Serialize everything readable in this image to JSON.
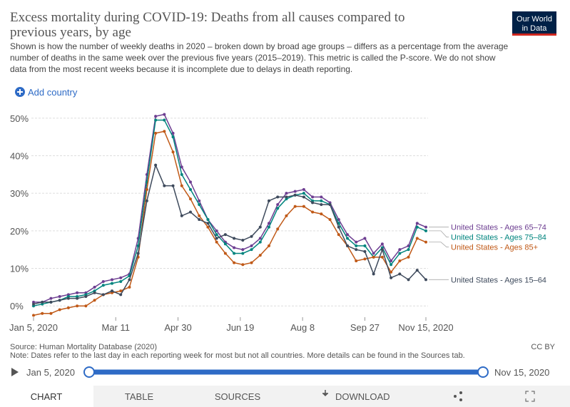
{
  "chart_data": {
    "type": "line",
    "title": [
      "Excess mortality during COVID-19: Deaths from all causes compared to",
      "previous years, by age"
    ],
    "subtitle": [
      "Shown is how the number of weekly deaths in 2020 – broken down by broad age groups – differs as a percentage from the average",
      "number of deaths in the same week over the previous five years (2015–2019). This metric is called the P-score. We do not show",
      "data from the most recent weeks because it is incomplete due to delays in death reporting."
    ],
    "x": [
      "2020-01-05",
      "2020-01-12",
      "2020-01-19",
      "2020-01-26",
      "2020-02-02",
      "2020-02-09",
      "2020-02-16",
      "2020-02-23",
      "2020-03-01",
      "2020-03-08",
      "2020-03-15",
      "2020-03-22",
      "2020-03-29",
      "2020-04-05",
      "2020-04-12",
      "2020-04-19",
      "2020-04-26",
      "2020-05-03",
      "2020-05-10",
      "2020-05-17",
      "2020-05-24",
      "2020-05-31",
      "2020-06-07",
      "2020-06-14",
      "2020-06-21",
      "2020-06-28",
      "2020-07-05",
      "2020-07-12",
      "2020-07-19",
      "2020-07-26",
      "2020-08-02",
      "2020-08-09",
      "2020-08-16",
      "2020-08-23",
      "2020-08-30",
      "2020-09-06",
      "2020-09-13",
      "2020-09-20",
      "2020-09-27",
      "2020-10-04",
      "2020-10-11",
      "2020-10-18",
      "2020-10-25",
      "2020-11-01",
      "2020-11-08",
      "2020-11-15"
    ],
    "xlim": [
      "2020-01-05",
      "2020-11-15"
    ],
    "xticks": [
      {
        "value": "2020-01-05",
        "label": "Jan 5, 2020"
      },
      {
        "value": "2020-03-11",
        "label": "Mar 11"
      },
      {
        "value": "2020-04-30",
        "label": "Apr 30"
      },
      {
        "value": "2020-06-19",
        "label": "Jun 19"
      },
      {
        "value": "2020-08-08",
        "label": "Aug 8"
      },
      {
        "value": "2020-09-27",
        "label": "Sep 27"
      },
      {
        "value": "2020-11-15",
        "label": "Nov 15, 2020"
      }
    ],
    "ylim": [
      -3,
      53
    ],
    "yticks": [
      {
        "value": 0,
        "label": "0%"
      },
      {
        "value": 10,
        "label": "10%"
      },
      {
        "value": 20,
        "label": "20%"
      },
      {
        "value": 30,
        "label": "30%"
      },
      {
        "value": 40,
        "label": "40%"
      },
      {
        "value": 50,
        "label": "50%"
      }
    ],
    "grid": true,
    "series": [
      {
        "name": "United States - Ages 65–74",
        "color": "#6d3e91",
        "values": [
          1,
          1,
          2,
          2.5,
          3,
          3.5,
          3.5,
          5,
          6.5,
          7,
          7.5,
          8.5,
          18,
          35,
          50.5,
          51,
          46,
          37,
          33,
          28,
          23,
          20,
          17,
          15.5,
          15,
          16,
          18,
          22,
          27,
          30,
          30.5,
          31,
          29,
          29,
          27.5,
          23,
          19,
          17,
          18,
          14,
          16.5,
          12,
          15,
          16,
          22,
          21
        ]
      },
      {
        "name": "United States - Ages 75–84",
        "color": "#00847e",
        "values": [
          0,
          0.5,
          1,
          1.5,
          2.5,
          2.5,
          3,
          4,
          5.5,
          6,
          6.5,
          8,
          16,
          33,
          49.5,
          49.5,
          45,
          35,
          31,
          27,
          23,
          19,
          16.5,
          14,
          14,
          15,
          17,
          21,
          26,
          28.5,
          29.5,
          30,
          28,
          28,
          27,
          22,
          18,
          16,
          16,
          13,
          15.5,
          11,
          14,
          15,
          21,
          20
        ]
      },
      {
        "name": "United States - Ages 85+",
        "color": "#c05917",
        "values": [
          -2.5,
          -2,
          -2,
          -1,
          -0.5,
          0,
          0,
          1.5,
          3,
          3.5,
          4,
          5,
          13,
          31,
          46,
          46.5,
          41,
          32,
          28.5,
          24,
          21,
          17,
          14,
          11.5,
          11,
          11.5,
          13.5,
          16,
          20.5,
          24,
          26.5,
          26.5,
          25,
          24.5,
          23,
          19,
          16,
          12,
          12.5,
          13,
          13,
          9,
          12,
          13,
          18,
          17
        ]
      },
      {
        "name": "United States - Ages 15–64",
        "color": "#3e4a5c",
        "values": [
          0.5,
          1,
          1,
          1.5,
          2,
          2,
          2.5,
          3.5,
          3,
          4,
          3,
          7,
          14,
          28,
          37.5,
          32,
          32,
          24,
          25,
          23,
          22,
          18,
          19,
          18,
          17.5,
          18.5,
          21,
          28,
          29,
          29,
          29.5,
          29,
          27.5,
          27,
          27,
          21,
          16,
          15,
          14.5,
          8.5,
          15,
          7.5,
          8.5,
          7,
          9.5,
          7
        ]
      }
    ]
  },
  "ui": {
    "logo": [
      "Our World",
      "in Data"
    ],
    "add_country": "Add country",
    "source": "Source: Human Mortality Database (2020)",
    "note": "Note: Dates refer to the last day in each reporting week for most but not all countries. More details can be found in the Sources tab.",
    "license": "CC BY",
    "timeline": {
      "start": "Jan 5, 2020",
      "end": "Nov 15, 2020"
    },
    "tabs": [
      "CHART",
      "TABLE",
      "SOURCES",
      "DOWNLOAD"
    ]
  }
}
